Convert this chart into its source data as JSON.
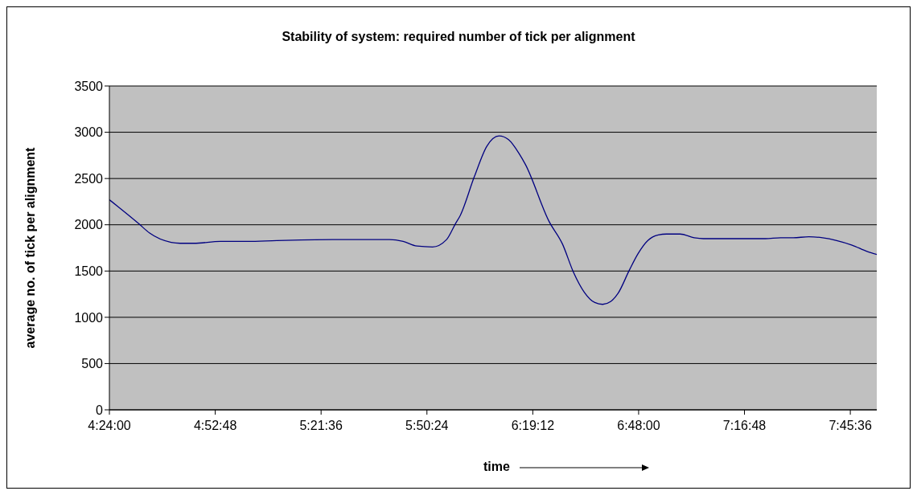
{
  "chart_data": {
    "type": "line",
    "title": "Stability of system: required number of tick per alignment",
    "xlabel": "time",
    "ylabel": "average no. of tick per alignment",
    "x": [
      4.4,
      4.534,
      4.5825,
      4.68,
      4.721,
      4.783,
      4.904,
      5.027,
      5.159,
      5.415,
      5.67,
      5.732,
      5.794,
      5.865,
      5.929,
      5.969,
      5.991,
      6.055,
      6.112,
      6.167,
      6.21,
      6.258,
      6.287,
      6.393,
      6.455,
      6.504,
      6.554,
      6.601,
      6.637,
      6.673,
      6.707,
      6.758,
      6.798,
      6.842,
      6.889,
      6.926,
      6.988,
      7.052,
      7.094,
      7.375,
      7.444,
      7.501,
      7.572,
      7.634,
      7.698,
      7.768,
      7.838,
      7.88
    ],
    "series": [
      {
        "color": "#000080",
        "values": [
          2270,
          2010,
          1910,
          1810,
          1800,
          1800,
          1820,
          1820,
          1830,
          1840,
          1840,
          1820,
          1770,
          1760,
          1840,
          2010,
          2100,
          2520,
          2850,
          2960,
          2920,
          2770,
          2650,
          2040,
          1790,
          1490,
          1270,
          1160,
          1140,
          1170,
          1260,
          1510,
          1690,
          1830,
          1890,
          1900,
          1900,
          1860,
          1850,
          1850,
          1860,
          1860,
          1870,
          1860,
          1830,
          1780,
          1710,
          1680
        ]
      }
    ],
    "xlim": [
      4.4,
      7.88
    ],
    "xticks": [
      {
        "value": 4.4,
        "label": "4:24:00"
      },
      {
        "value": 4.88,
        "label": "4:52:48"
      },
      {
        "value": 5.36,
        "label": "5:21:36"
      },
      {
        "value": 5.84,
        "label": "5:50:24"
      },
      {
        "value": 6.32,
        "label": "6:19:12"
      },
      {
        "value": 6.8,
        "label": "6:48:00"
      },
      {
        "value": 7.28,
        "label": "7:16:48"
      },
      {
        "value": 7.76,
        "label": "7:45:36"
      }
    ],
    "ylim": [
      0,
      3500
    ],
    "yticks": [
      0,
      500,
      1000,
      1500,
      2000,
      2500,
      3000,
      3500
    ],
    "grid": "y",
    "legend": false
  }
}
